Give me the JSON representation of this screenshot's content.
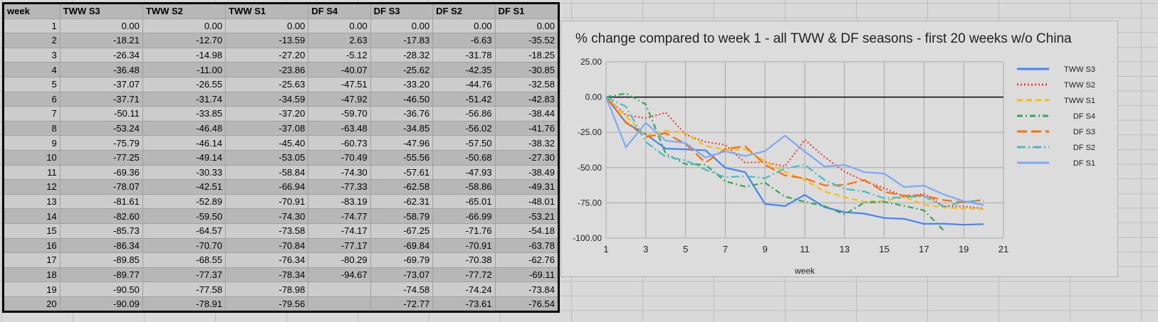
{
  "table": {
    "headers": [
      "week",
      "TWW S3",
      "TWW S2",
      "TWW S1",
      "DF S4",
      "DF S3",
      "DF S2",
      "DF S1"
    ],
    "rows": [
      [
        "1",
        "0.00",
        "0.00",
        "0.00",
        "0.00",
        "0.00",
        "0.00",
        "0.00"
      ],
      [
        "2",
        "-18.21",
        "-12.70",
        "-13.59",
        "2.63",
        "-17.83",
        "-6.63",
        "-35.52"
      ],
      [
        "3",
        "-26.34",
        "-14.98",
        "-27.20",
        "-5.12",
        "-28.32",
        "-31.78",
        "-18.25"
      ],
      [
        "4",
        "-36.48",
        "-11.00",
        "-23.86",
        "-40.07",
        "-25.62",
        "-42.35",
        "-30.85"
      ],
      [
        "5",
        "-37.07",
        "-26.55",
        "-25.63",
        "-47.51",
        "-33.20",
        "-44.76",
        "-32.58"
      ],
      [
        "6",
        "-37.71",
        "-31.74",
        "-34.59",
        "-47.92",
        "-46.50",
        "-51.42",
        "-42.83"
      ],
      [
        "7",
        "-50.11",
        "-33.85",
        "-37.20",
        "-59.70",
        "-36.76",
        "-56.86",
        "-38.44"
      ],
      [
        "8",
        "-53.24",
        "-46.48",
        "-37.08",
        "-63.48",
        "-34.85",
        "-56.02",
        "-41.76"
      ],
      [
        "9",
        "-75.79",
        "-46.14",
        "-45.40",
        "-60.73",
        "-47.96",
        "-57.50",
        "-38.32"
      ],
      [
        "10",
        "-77.25",
        "-49.14",
        "-53.05",
        "-70.49",
        "-55.56",
        "-50.68",
        "-27.30"
      ],
      [
        "11",
        "-69.36",
        "-30.33",
        "-58.84",
        "-74.30",
        "-57.61",
        "-47.93",
        "-38.49"
      ],
      [
        "12",
        "-78.07",
        "-42.51",
        "-66.94",
        "-77.33",
        "-62.58",
        "-58.86",
        "-49.31"
      ],
      [
        "13",
        "-81.61",
        "-52.89",
        "-70.91",
        "-83.19",
        "-62.31",
        "-65.01",
        "-48.01"
      ],
      [
        "14",
        "-82.60",
        "-59.50",
        "-74.30",
        "-74.77",
        "-58.79",
        "-66.99",
        "-53.21"
      ],
      [
        "15",
        "-85.73",
        "-64.57",
        "-73.58",
        "-74.17",
        "-67.25",
        "-71.76",
        "-54.18"
      ],
      [
        "16",
        "-86.34",
        "-70.70",
        "-70.84",
        "-77.17",
        "-69.84",
        "-70.91",
        "-63.78"
      ],
      [
        "17",
        "-89.85",
        "-68.55",
        "-76.34",
        "-80.29",
        "-69.79",
        "-70.38",
        "-62.76"
      ],
      [
        "18",
        "-89.77",
        "-77.37",
        "-78.34",
        "-94.67",
        "-73.07",
        "-77.72",
        "-69.11"
      ],
      [
        "19",
        "-90.50",
        "-77.58",
        "-78.98",
        "",
        "-74.58",
        "-74.24",
        "-73.84"
      ],
      [
        "20",
        "-90.09",
        "-78.91",
        "-79.56",
        "",
        "-72.77",
        "-73.61",
        "-76.54"
      ]
    ]
  },
  "chart_data": {
    "type": "line",
    "title": "% change compared to week 1 - all TWW & DF seasons - first 20 weeks w/o China",
    "xlabel": "week",
    "ylabel": "",
    "xlim": [
      1,
      21
    ],
    "ylim": [
      -100,
      25
    ],
    "x_ticks": [
      "1",
      "3",
      "5",
      "7",
      "9",
      "11",
      "13",
      "15",
      "17",
      "19",
      "21"
    ],
    "y_ticks": [
      "25.00",
      "0.00",
      "-25.00",
      "-50.00",
      "-75.00",
      "-100.00"
    ],
    "grid": true,
    "legend": "right",
    "x": [
      1,
      2,
      3,
      4,
      5,
      6,
      7,
      8,
      9,
      10,
      11,
      12,
      13,
      14,
      15,
      16,
      17,
      18,
      19,
      20
    ],
    "series": [
      {
        "name": "TWW S3",
        "color": "#4285f4",
        "dash": "",
        "values": [
          0,
          -18.21,
          -26.34,
          -36.48,
          -37.07,
          -37.71,
          -50.11,
          -53.24,
          -75.79,
          -77.25,
          -69.36,
          -78.07,
          -81.61,
          -82.6,
          -85.73,
          -86.34,
          -89.85,
          -89.77,
          -90.5,
          -90.09
        ]
      },
      {
        "name": "TWW S2",
        "color": "#ea4335",
        "dash": "2 3",
        "values": [
          0,
          -12.7,
          -14.98,
          -11,
          -26.55,
          -31.74,
          -33.85,
          -46.48,
          -46.14,
          -49.14,
          -30.33,
          -42.51,
          -52.89,
          -59.5,
          -64.57,
          -70.7,
          -68.55,
          -77.37,
          -77.58,
          -78.91
        ]
      },
      {
        "name": "TWW S1",
        "color": "#fbbc04",
        "dash": "8 5",
        "values": [
          0,
          -13.59,
          -27.2,
          -23.86,
          -25.63,
          -34.59,
          -37.2,
          -37.08,
          -45.4,
          -53.05,
          -58.84,
          -66.94,
          -70.91,
          -74.3,
          -73.58,
          -70.84,
          -76.34,
          -78.34,
          -78.98,
          -79.56
        ]
      },
      {
        "name": "DF S4",
        "color": "#34a853",
        "dash": "8 4 2 4",
        "values": [
          0,
          2.63,
          -5.12,
          -40.07,
          -47.51,
          -47.92,
          -59.7,
          -63.48,
          -60.73,
          -70.49,
          -74.3,
          -77.33,
          -83.19,
          -74.77,
          -74.17,
          -77.17,
          -80.29,
          -94.67,
          null,
          null
        ]
      },
      {
        "name": "DF S3",
        "color": "#ff6d01",
        "dash": "14 6",
        "values": [
          0,
          -17.83,
          -28.32,
          -25.62,
          -33.2,
          -46.5,
          -36.76,
          -34.85,
          -47.96,
          -55.56,
          -57.61,
          -62.58,
          -62.31,
          -58.79,
          -67.25,
          -69.84,
          -69.79,
          -73.07,
          -74.58,
          -72.77
        ]
      },
      {
        "name": "DF S2",
        "color": "#46bdc6",
        "dash": "12 4 2 4",
        "values": [
          0,
          -6.63,
          -31.78,
          -42.35,
          -44.76,
          -51.42,
          -56.86,
          -56.02,
          -57.5,
          -50.68,
          -47.93,
          -58.86,
          -65.01,
          -66.99,
          -71.76,
          -70.91,
          -70.38,
          -77.72,
          -74.24,
          -73.61
        ]
      },
      {
        "name": "DF S1",
        "color": "#7baaf7",
        "dash": "",
        "values": [
          0,
          -35.52,
          -18.25,
          -30.85,
          -32.58,
          -42.83,
          -38.44,
          -41.76,
          -38.32,
          -27.3,
          -38.49,
          -49.31,
          -48.01,
          -53.21,
          -54.18,
          -63.78,
          -62.76,
          -69.11,
          -73.84,
          -76.54
        ]
      }
    ]
  }
}
